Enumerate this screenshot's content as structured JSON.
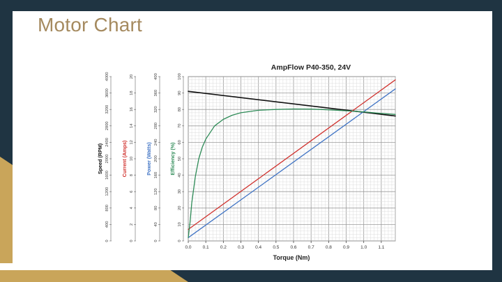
{
  "slide": {
    "title": "Motor Chart"
  },
  "colors": {
    "background_dark": "#1f3442",
    "accent_gold": "#c9a55a",
    "title_text": "#a58a5f",
    "speed": "#111111",
    "current": "#d0312d",
    "power": "#3f73c4",
    "efficiency": "#2e8b57"
  },
  "chart_data": {
    "type": "line",
    "title": "AmpFlow P40-350, 24V",
    "xlabel": "Torque (Nm)",
    "xlim": [
      0,
      1.18
    ],
    "x_ticks": [
      "0.0",
      "0.1",
      "0.2",
      "0.3",
      "0.4",
      "0.5",
      "0.6",
      "0.7",
      "0.8",
      "0.9",
      "1.0",
      "1.1"
    ],
    "grid": true,
    "axes": [
      {
        "key": "speed",
        "label": "Speed (RPM)",
        "ylim": [
          0,
          4000
        ],
        "ticks": [
          "0",
          "400",
          "800",
          "1200",
          "1600",
          "2000",
          "2400",
          "2800",
          "3200",
          "3600",
          "4000"
        ]
      },
      {
        "key": "current",
        "label": "Current (Amps)",
        "ylim": [
          0,
          20
        ],
        "ticks": [
          "0",
          "2",
          "4",
          "6",
          "8",
          "10",
          "12",
          "14",
          "16",
          "18",
          "20"
        ]
      },
      {
        "key": "power",
        "label": "Power (Watts)",
        "ylim": [
          0,
          400
        ],
        "ticks": [
          "0",
          "40",
          "80",
          "120",
          "160",
          "200",
          "240",
          "280",
          "320",
          "360",
          "400"
        ]
      },
      {
        "key": "efficiency",
        "label": "Efficiency (%)",
        "ylim": [
          0,
          100
        ],
        "ticks": [
          "0",
          "10",
          "20",
          "30",
          "40",
          "50",
          "60",
          "70",
          "80",
          "90",
          "100"
        ]
      }
    ],
    "series": [
      {
        "name": "Speed (RPM)",
        "axis": "speed",
        "color": "#111111",
        "x": [
          0,
          1.18
        ],
        "y": [
          3640,
          3040
        ]
      },
      {
        "name": "Current (Amps)",
        "axis": "current",
        "color": "#d0312d",
        "x": [
          0,
          1.18
        ],
        "y": [
          1.4,
          19.6
        ]
      },
      {
        "name": "Power (Watts)",
        "axis": "power",
        "color": "#3f73c4",
        "x": [
          0,
          1.18
        ],
        "y": [
          8,
          370
        ]
      },
      {
        "name": "Efficiency (%)",
        "axis": "efficiency",
        "color": "#2e8b57",
        "x": [
          0.0,
          0.01,
          0.02,
          0.04,
          0.06,
          0.08,
          0.1,
          0.15,
          0.2,
          0.25,
          0.3,
          0.4,
          0.5,
          0.6,
          0.7,
          0.8,
          0.9,
          1.0,
          1.1,
          1.18
        ],
        "y": [
          2,
          11,
          23,
          39,
          50,
          57,
          62,
          70,
          74,
          76.5,
          78,
          79.5,
          80,
          80.3,
          80.2,
          79.8,
          79.2,
          78.5,
          77.6,
          77
        ]
      }
    ]
  }
}
